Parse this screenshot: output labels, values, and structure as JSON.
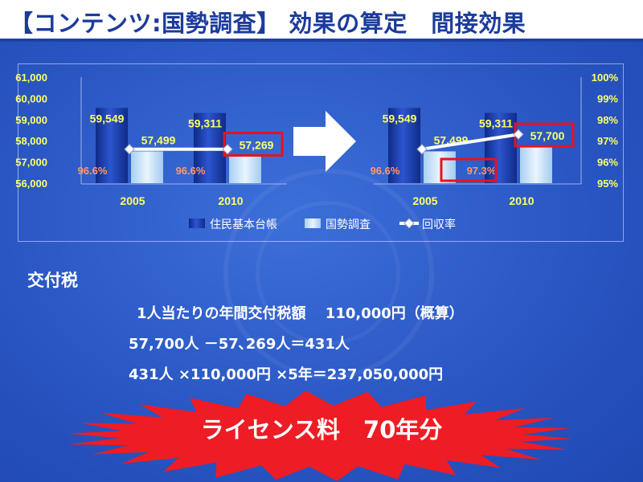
{
  "slide": {
    "title": "【コンテンツ:国勢調査】 効果の算定　間接効果",
    "section_title": "交付税",
    "lines": [
      "1人当たりの年間交付税額　 110,000円（概算）",
      "57,700人 －57､269人＝431人",
      "431人 ×110,000円 ×5年＝237,050,000円"
    ],
    "banner_text": "ライセンス料　70年分"
  },
  "colors": {
    "background": "#2a57c4",
    "title_text": "#1c3b9a",
    "bar_dark": "#1a3ba8",
    "bar_light": "#cfe6fb",
    "axis_text": "#ffff66",
    "pct_label": "#ff9966",
    "highlight": "#e8121e",
    "burst": "#ee1c24"
  },
  "chart_data": [
    {
      "type": "bar",
      "categories": [
        "2005",
        "2010"
      ],
      "series": [
        {
          "name": "住民基本台帳",
          "values": [
            59549,
            59311
          ],
          "labels": [
            "59,549",
            "59,311"
          ]
        },
        {
          "name": "国勢調査",
          "values": [
            57499,
            57269
          ],
          "labels": [
            "57,499",
            "57,269"
          ]
        },
        {
          "name": "回収率",
          "type": "line",
          "axis": "right",
          "values": [
            96.6,
            96.6
          ],
          "labels": [
            "96.6%",
            "96.6%"
          ]
        }
      ],
      "ylim": [
        56000,
        61000
      ],
      "y_ticks": [
        "56,000",
        "57,000",
        "58,000",
        "59,000",
        "60,000",
        "61,000"
      ],
      "highlighted": [
        "57,269"
      ]
    },
    {
      "type": "bar",
      "categories": [
        "2005",
        "2010"
      ],
      "series": [
        {
          "name": "住民基本台帳",
          "values": [
            59549,
            59311
          ],
          "labels": [
            "59,549",
            "59,311"
          ]
        },
        {
          "name": "国勢調査",
          "values": [
            57499,
            57700
          ],
          "labels": [
            "57,499",
            "57,700"
          ]
        },
        {
          "name": "回収率",
          "type": "line",
          "axis": "right",
          "values": [
            96.6,
            97.3
          ],
          "labels": [
            "96.6%",
            "97.3%"
          ]
        }
      ],
      "y2lim": [
        95,
        100
      ],
      "y2_ticks": [
        "95%",
        "96%",
        "97%",
        "98%",
        "99%",
        "100%"
      ],
      "highlighted": [
        "97.3%",
        "57,700"
      ]
    }
  ],
  "legend": {
    "items": [
      {
        "label": "住民基本台帳",
        "icon": "dark-bar-icon"
      },
      {
        "label": "国勢調査",
        "icon": "light-bar-icon"
      },
      {
        "label": "回収率",
        "icon": "diamond-line-icon"
      }
    ]
  }
}
